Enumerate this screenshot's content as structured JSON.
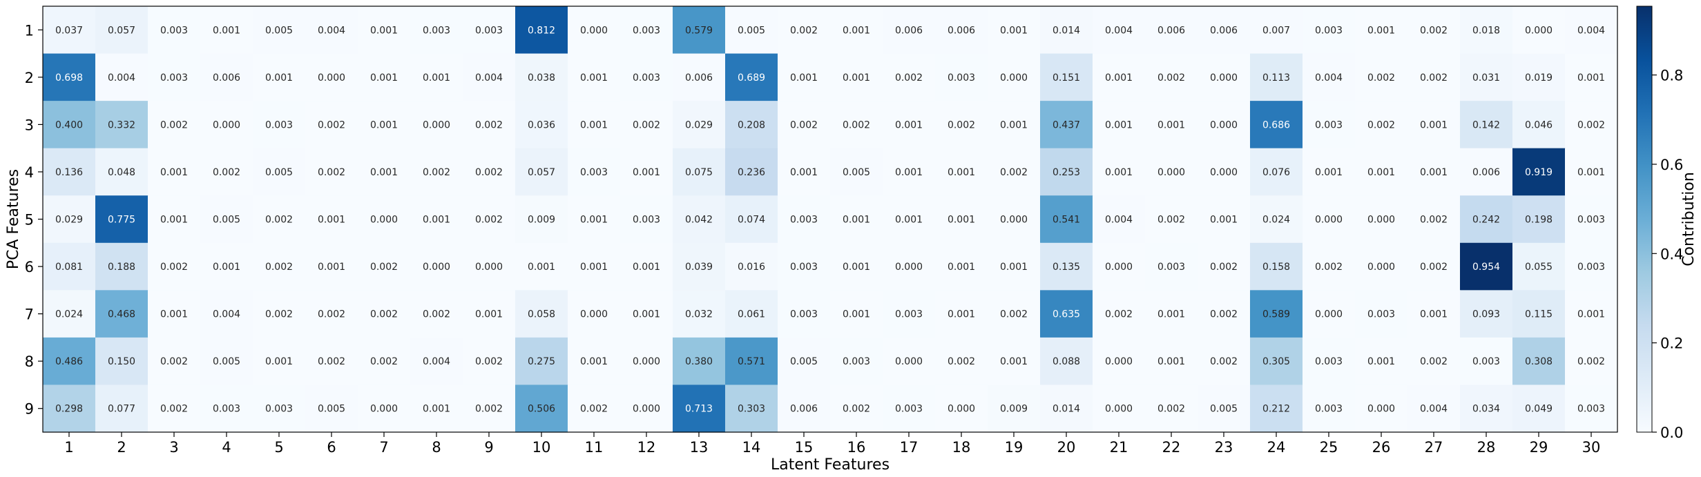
{
  "chart_data": {
    "type": "heatmap",
    "xlabel": "Latent Features",
    "ylabel": "PCA Features",
    "x_categories": [
      "1",
      "2",
      "3",
      "4",
      "5",
      "6",
      "7",
      "8",
      "9",
      "10",
      "11",
      "12",
      "13",
      "14",
      "15",
      "16",
      "17",
      "18",
      "19",
      "20",
      "21",
      "22",
      "23",
      "24",
      "25",
      "26",
      "27",
      "28",
      "29",
      "30"
    ],
    "y_categories": [
      "1",
      "2",
      "3",
      "4",
      "5",
      "6",
      "7",
      "8",
      "9"
    ],
    "values": [
      [
        "0.037",
        "0.057",
        "0.003",
        "0.001",
        "0.005",
        "0.004",
        "0.001",
        "0.003",
        "0.003",
        "0.812",
        "0.000",
        "0.003",
        "0.579",
        "0.005",
        "0.002",
        "0.001",
        "0.006",
        "0.006",
        "0.001",
        "0.014",
        "0.004",
        "0.006",
        "0.006",
        "0.007",
        "0.003",
        "0.001",
        "0.002",
        "0.018",
        "0.000",
        "0.004"
      ],
      [
        "0.698",
        "0.004",
        "0.003",
        "0.006",
        "0.001",
        "0.000",
        "0.001",
        "0.001",
        "0.004",
        "0.038",
        "0.001",
        "0.003",
        "0.006",
        "0.689",
        "0.001",
        "0.001",
        "0.002",
        "0.003",
        "0.000",
        "0.151",
        "0.001",
        "0.002",
        "0.000",
        "0.113",
        "0.004",
        "0.002",
        "0.002",
        "0.031",
        "0.019",
        "0.001"
      ],
      [
        "0.400",
        "0.332",
        "0.002",
        "0.000",
        "0.003",
        "0.002",
        "0.001",
        "0.000",
        "0.002",
        "0.036",
        "0.001",
        "0.002",
        "0.029",
        "0.208",
        "0.002",
        "0.002",
        "0.001",
        "0.002",
        "0.001",
        "0.437",
        "0.001",
        "0.001",
        "0.000",
        "0.686",
        "0.003",
        "0.002",
        "0.001",
        "0.142",
        "0.046",
        "0.002"
      ],
      [
        "0.136",
        "0.048",
        "0.001",
        "0.002",
        "0.005",
        "0.002",
        "0.001",
        "0.002",
        "0.002",
        "0.057",
        "0.003",
        "0.001",
        "0.075",
        "0.236",
        "0.001",
        "0.005",
        "0.001",
        "0.001",
        "0.002",
        "0.253",
        "0.001",
        "0.000",
        "0.000",
        "0.076",
        "0.001",
        "0.001",
        "0.001",
        "0.006",
        "0.919",
        "0.001"
      ],
      [
        "0.029",
        "0.775",
        "0.001",
        "0.005",
        "0.002",
        "0.001",
        "0.000",
        "0.001",
        "0.002",
        "0.009",
        "0.001",
        "0.003",
        "0.042",
        "0.074",
        "0.003",
        "0.001",
        "0.001",
        "0.001",
        "0.000",
        "0.541",
        "0.004",
        "0.002",
        "0.001",
        "0.024",
        "0.000",
        "0.000",
        "0.002",
        "0.242",
        "0.198",
        "0.003"
      ],
      [
        "0.081",
        "0.188",
        "0.002",
        "0.001",
        "0.002",
        "0.001",
        "0.002",
        "0.000",
        "0.000",
        "0.001",
        "0.001",
        "0.001",
        "0.039",
        "0.016",
        "0.003",
        "0.001",
        "0.000",
        "0.001",
        "0.001",
        "0.135",
        "0.000",
        "0.003",
        "0.002",
        "0.158",
        "0.002",
        "0.000",
        "0.002",
        "0.954",
        "0.055",
        "0.003"
      ],
      [
        "0.024",
        "0.468",
        "0.001",
        "0.004",
        "0.002",
        "0.002",
        "0.002",
        "0.002",
        "0.001",
        "0.058",
        "0.000",
        "0.001",
        "0.032",
        "0.061",
        "0.003",
        "0.001",
        "0.003",
        "0.001",
        "0.002",
        "0.635",
        "0.002",
        "0.001",
        "0.002",
        "0.589",
        "0.000",
        "0.003",
        "0.001",
        "0.093",
        "0.115",
        "0.001"
      ],
      [
        "0.486",
        "0.150",
        "0.002",
        "0.005",
        "0.001",
        "0.002",
        "0.002",
        "0.004",
        "0.002",
        "0.275",
        "0.001",
        "0.000",
        "0.380",
        "0.571",
        "0.005",
        "0.003",
        "0.000",
        "0.002",
        "0.001",
        "0.088",
        "0.000",
        "0.001",
        "0.002",
        "0.305",
        "0.003",
        "0.001",
        "0.002",
        "0.003",
        "0.308",
        "0.002"
      ],
      [
        "0.298",
        "0.077",
        "0.002",
        "0.003",
        "0.003",
        "0.005",
        "0.000",
        "0.001",
        "0.002",
        "0.506",
        "0.002",
        "0.000",
        "0.713",
        "0.303",
        "0.006",
        "0.002",
        "0.003",
        "0.000",
        "0.009",
        "0.014",
        "0.000",
        "0.002",
        "0.005",
        "0.212",
        "0.003",
        "0.000",
        "0.004",
        "0.034",
        "0.049",
        "0.003"
      ]
    ],
    "colorbar": {
      "label": "Contribution",
      "range": [
        0,
        0.954
      ],
      "ticks": [
        "0.0",
        "0.2",
        "0.4",
        "0.6",
        "0.8"
      ],
      "colormap": "Blues"
    },
    "grid": false
  }
}
